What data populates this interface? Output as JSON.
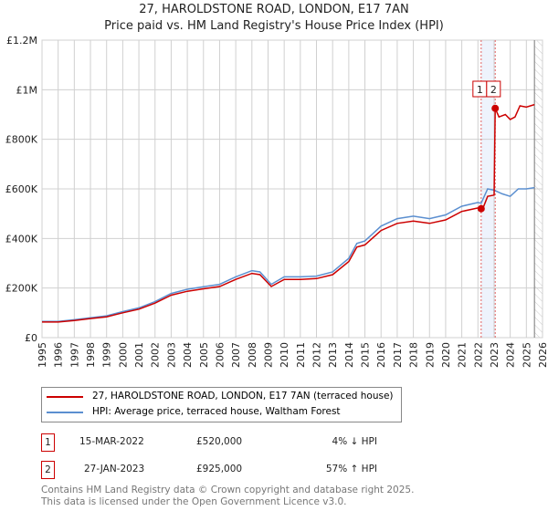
{
  "title_line1": "27, HAROLDSTONE ROAD, LONDON, E17 7AN",
  "title_line2": "Price paid vs. HM Land Registry's House Price Index (HPI)",
  "colors": {
    "property": "#cc0000",
    "hpi": "#5b8fd0",
    "band": "#eef3fc",
    "marker_line": "#e06060"
  },
  "chart_data": {
    "type": "line",
    "title": "Price paid vs. HM Land Registry's House Price Index (HPI)",
    "xlim": [
      1995,
      2026
    ],
    "ylim": [
      0,
      1200000
    ],
    "x_ticks": [
      "1995",
      "1996",
      "1997",
      "1998",
      "1999",
      "2000",
      "2001",
      "2002",
      "2003",
      "2004",
      "2005",
      "2006",
      "2007",
      "2008",
      "2009",
      "2010",
      "2011",
      "2012",
      "2013",
      "2014",
      "2015",
      "2016",
      "2017",
      "2018",
      "2019",
      "2020",
      "2021",
      "2022",
      "2023",
      "2024",
      "2025",
      "2026"
    ],
    "y_ticks": [
      {
        "v": 0,
        "label": "£0"
      },
      {
        "v": 200000,
        "label": "£200K"
      },
      {
        "v": 400000,
        "label": "£400K"
      },
      {
        "v": 600000,
        "label": "£600K"
      },
      {
        "v": 800000,
        "label": "£800K"
      },
      {
        "v": 1000000,
        "label": "£1M"
      },
      {
        "v": 1200000,
        "label": "£1.2M"
      }
    ],
    "grid": true,
    "legend_placement": "below",
    "series": [
      {
        "name": "27, HAROLDSTONE ROAD, LONDON, E17 7AN (terraced house)",
        "color": "#cc0000",
        "x": [
          1995,
          1996,
          1997,
          1998,
          1999,
          2000,
          2001,
          2002,
          2003,
          2004,
          2005,
          2006,
          2007,
          2008,
          2008.5,
          2009.2,
          2010,
          2011,
          2012,
          2013,
          2014,
          2014.5,
          2015,
          2016,
          2017,
          2018,
          2019,
          2020,
          2021,
          2022,
          2022.2,
          2022.3,
          2022.6,
          2023.0,
          2023.07,
          2023.3,
          2023.7,
          2024,
          2024.3,
          2024.6,
          2025,
          2025.5
        ],
        "y": [
          63000,
          63000,
          69000,
          77000,
          84000,
          100000,
          115000,
          139000,
          171000,
          187000,
          197000,
          206000,
          235000,
          259000,
          254000,
          206000,
          235000,
          235000,
          238000,
          254000,
          307000,
          365000,
          374000,
          432000,
          461000,
          470000,
          461000,
          475000,
          509000,
          523000,
          520000,
          520000,
          570000,
          575000,
          925000,
          890000,
          900000,
          880000,
          890000,
          935000,
          930000,
          940000
        ]
      },
      {
        "name": "HPI: Average price, terraced house, Waltham Forest",
        "color": "#5b8fd0",
        "x": [
          1995,
          1996,
          1997,
          1998,
          1999,
          2000,
          2001,
          2002,
          2003,
          2004,
          2005,
          2006,
          2007,
          2008,
          2008.5,
          2009.2,
          2010,
          2011,
          2012,
          2013,
          2014,
          2014.5,
          2015,
          2016,
          2017,
          2018,
          2019,
          2020,
          2021,
          2022,
          2022.2,
          2022.6,
          2023,
          2023.5,
          2024,
          2024.5,
          2025,
          2025.5
        ],
        "y": [
          65000,
          65000,
          72000,
          80000,
          88000,
          105000,
          120000,
          145000,
          178000,
          195000,
          205000,
          215000,
          245000,
          270000,
          265000,
          215000,
          245000,
          245000,
          248000,
          265000,
          320000,
          380000,
          390000,
          450000,
          480000,
          490000,
          480000,
          495000,
          530000,
          545000,
          542000,
          600000,
          595000,
          580000,
          570000,
          600000,
          600000,
          605000
        ]
      }
    ],
    "sales": [
      {
        "id": "1",
        "x": 2022.2,
        "y": 520000
      },
      {
        "id": "2",
        "x": 2023.07,
        "y": 925000
      }
    ],
    "forecast_from": 2025.5
  },
  "legend": {
    "property": "27, HAROLDSTONE ROAD, LONDON, E17 7AN (terraced house)",
    "hpi": "HPI: Average price, terraced house, Waltham Forest"
  },
  "transactions": [
    {
      "id": "1",
      "date": "15-MAR-2022",
      "price": "£520,000",
      "hpi": "4% ↓ HPI"
    },
    {
      "id": "2",
      "date": "27-JAN-2023",
      "price": "£925,000",
      "hpi": "57% ↑ HPI"
    }
  ],
  "footer": {
    "line1": "Contains HM Land Registry data © Crown copyright and database right 2025.",
    "line2": "This data is licensed under the Open Government Licence v3.0."
  }
}
